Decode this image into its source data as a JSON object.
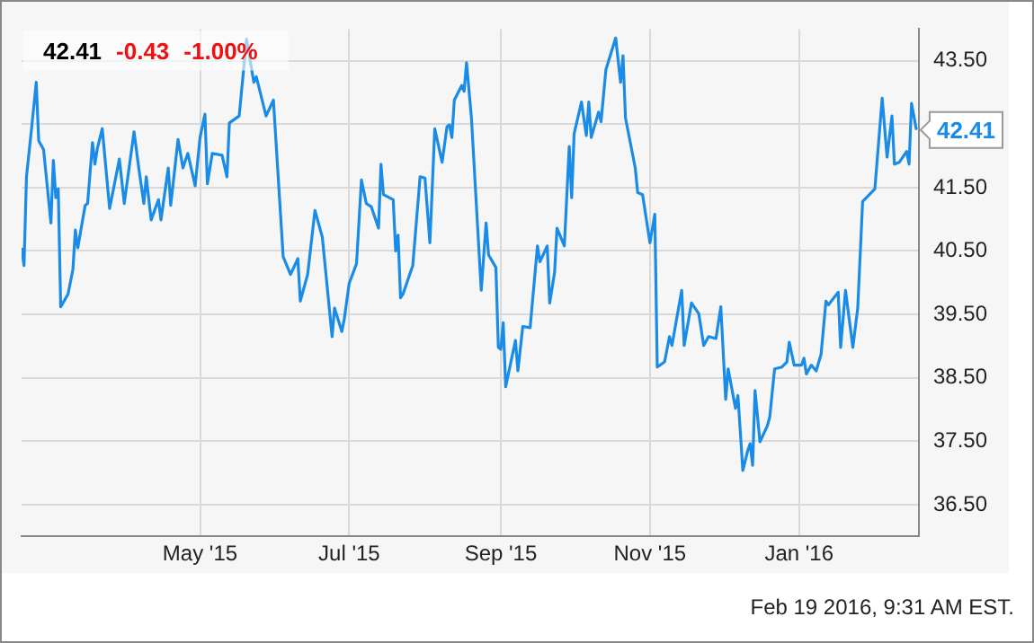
{
  "chart_data": {
    "type": "line",
    "x": [
      "2015-02-17",
      "2015-02-18",
      "2015-02-19",
      "2015-02-21",
      "2015-02-23",
      "2015-02-24",
      "2015-02-26",
      "2015-03-01",
      "2015-03-02",
      "2015-03-03",
      "2015-03-04",
      "2015-03-05",
      "2015-03-08",
      "2015-03-10",
      "2015-03-11",
      "2015-03-12",
      "2015-03-15",
      "2015-03-16",
      "2015-03-18",
      "2015-03-19",
      "2015-03-20",
      "2015-03-22",
      "2015-03-25",
      "2015-03-29",
      "2015-03-31",
      "2015-04-04",
      "2015-04-06",
      "2015-04-08",
      "2015-04-09",
      "2015-04-11",
      "2015-04-14",
      "2015-04-15",
      "2015-04-18",
      "2015-04-19",
      "2015-04-22",
      "2015-04-24",
      "2015-04-26",
      "2015-04-29",
      "2015-05-01",
      "2015-05-03",
      "2015-05-04",
      "2015-05-06",
      "2015-05-10",
      "2015-05-12",
      "2015-05-13",
      "2015-05-17",
      "2015-05-20",
      "2015-05-23",
      "2015-05-24",
      "2015-05-28",
      "2015-05-31",
      "2015-06-04",
      "2015-06-07",
      "2015-06-10",
      "2015-06-11",
      "2015-06-14",
      "2015-06-17",
      "2015-06-20",
      "2015-06-24",
      "2015-06-25",
      "2015-06-28",
      "2015-06-29",
      "2015-07-01",
      "2015-07-04",
      "2015-07-06",
      "2015-07-08",
      "2015-07-10",
      "2015-07-13",
      "2015-07-14",
      "2015-07-15",
      "2015-07-19",
      "2015-07-20",
      "2015-07-21",
      "2015-07-22",
      "2015-07-23",
      "2015-07-27",
      "2015-07-30",
      "2015-08-01",
      "2015-08-03",
      "2015-08-05",
      "2015-08-08",
      "2015-08-10",
      "2015-08-11",
      "2015-08-12",
      "2015-08-13",
      "2015-08-16",
      "2015-08-17",
      "2015-08-18",
      "2015-08-20",
      "2015-08-24",
      "2015-08-26",
      "2015-08-27",
      "2015-08-30",
      "2015-08-31",
      "2015-09-01",
      "2015-09-02",
      "2015-09-03",
      "2015-09-07",
      "2015-09-08",
      "2015-09-10",
      "2015-09-13",
      "2015-09-16",
      "2015-09-17",
      "2015-09-20",
      "2015-09-21",
      "2015-09-23",
      "2015-09-24",
      "2015-09-27",
      "2015-09-29",
      "2015-09-30",
      "2015-10-01",
      "2015-10-04",
      "2015-10-06",
      "2015-10-07",
      "2015-10-08",
      "2015-10-11",
      "2015-10-12",
      "2015-10-14",
      "2015-10-18",
      "2015-10-20",
      "2015-10-21",
      "2015-10-22",
      "2015-10-26",
      "2015-10-27",
      "2015-10-29",
      "2015-11-01",
      "2015-11-03",
      "2015-11-04",
      "2015-11-07",
      "2015-11-09",
      "2015-11-10",
      "2015-11-14",
      "2015-11-15",
      "2015-11-18",
      "2015-11-21",
      "2015-11-23",
      "2015-11-25",
      "2015-11-28",
      "2015-11-30",
      "2015-12-02",
      "2015-12-03",
      "2015-12-06",
      "2015-12-07",
      "2015-12-09",
      "2015-12-11",
      "2015-12-12",
      "2015-12-13",
      "2015-12-14",
      "2015-12-16",
      "2015-12-19",
      "2015-12-20",
      "2015-12-22",
      "2015-12-25",
      "2015-12-27",
      "2015-12-28",
      "2015-12-30",
      "2016-01-02",
      "2016-01-03",
      "2016-01-04",
      "2016-01-06",
      "2016-01-08",
      "2016-01-10",
      "2016-01-12",
      "2016-01-13",
      "2016-01-17",
      "2016-01-18",
      "2016-01-20",
      "2016-01-23",
      "2016-01-25",
      "2016-01-27",
      "2016-02-01",
      "2016-02-04",
      "2016-02-06",
      "2016-02-08",
      "2016-02-09",
      "2016-02-11",
      "2016-02-14",
      "2016-02-15",
      "2016-02-16",
      "2016-02-18"
    ],
    "series": [
      {
        "color": "#1a8be6",
        "values": [
          40.55,
          40.27,
          41.67,
          42.4,
          43.16,
          42.24,
          42.1,
          40.94,
          41.93,
          41.34,
          41.48,
          39.62,
          39.82,
          40.21,
          40.83,
          40.55,
          41.22,
          41.25,
          42.21,
          41.87,
          42.12,
          42.43,
          41.17,
          41.95,
          41.25,
          42.38,
          41.79,
          41.25,
          41.67,
          40.99,
          41.31,
          40.99,
          41.81,
          41.22,
          42.26,
          41.81,
          42.04,
          41.53,
          42.29,
          42.66,
          41.56,
          42.04,
          42.01,
          41.67,
          42.52,
          42.63,
          43.84,
          43.16,
          43.25,
          42.63,
          42.88,
          40.41,
          40.13,
          40.38,
          39.71,
          40.13,
          41.14,
          40.72,
          39.15,
          39.6,
          39.23,
          39.43,
          39.99,
          40.3,
          41.62,
          41.25,
          41.2,
          40.86,
          41.87,
          41.39,
          41.31,
          40.5,
          40.75,
          39.76,
          39.82,
          40.27,
          41.67,
          41.65,
          40.63,
          42.43,
          41.9,
          42.46,
          42.49,
          42.29,
          42.88,
          43.11,
          43.02,
          43.47,
          42.6,
          39.88,
          40.94,
          40.44,
          40.24,
          38.98,
          38.95,
          39.37,
          38.36,
          39.09,
          38.61,
          39.31,
          39.29,
          40.58,
          40.33,
          40.58,
          39.68,
          40.16,
          40.86,
          40.58,
          42.15,
          41.34,
          42.35,
          42.85,
          42.32,
          42.85,
          42.29,
          42.69,
          42.54,
          43.36,
          43.86,
          43.16,
          43.58,
          42.6,
          41.81,
          41.42,
          41.39,
          40.63,
          41.08,
          38.67,
          38.75,
          39.15,
          39.01,
          39.88,
          39.01,
          39.68,
          39.51,
          39.01,
          39.15,
          39.12,
          39.62,
          38.16,
          38.64,
          38.02,
          38.22,
          37.04,
          37.35,
          37.46,
          37.12,
          38.3,
          37.49,
          37.74,
          37.88,
          38.64,
          38.67,
          38.75,
          39.06,
          38.7,
          38.7,
          38.81,
          38.56,
          38.7,
          38.61,
          38.87,
          39.71,
          39.65,
          39.85,
          38.98,
          39.88,
          38.98,
          39.6,
          41.28,
          41.48,
          42.91,
          41.98,
          42.63,
          41.87,
          41.9,
          42.07,
          41.87,
          42.83,
          42.41
        ]
      }
    ],
    "xlim": [
      "2015-02-17",
      "2016-02-19"
    ],
    "xticks": [
      {
        "value": "2015-05-01",
        "label": "May '15"
      },
      {
        "value": "2015-07-01",
        "label": "Jul '15"
      },
      {
        "value": "2015-09-01",
        "label": "Sep '15"
      },
      {
        "value": "2015-11-01",
        "label": "Nov '15"
      },
      {
        "value": "2016-01-01",
        "label": "Jan '16"
      }
    ],
    "ylim": [
      36,
      44
    ],
    "yticks": [
      {
        "value": 36.5,
        "label": "36.50"
      },
      {
        "value": 37.5,
        "label": "37.50"
      },
      {
        "value": 38.5,
        "label": "38.50"
      },
      {
        "value": 39.5,
        "label": "39.50"
      },
      {
        "value": 40.5,
        "label": "40.50"
      },
      {
        "value": 41.5,
        "label": "41.50"
      },
      {
        "value": 42.5,
        "label": null
      },
      {
        "value": 43.5,
        "label": "43.50"
      }
    ],
    "grid": true,
    "legend": false,
    "marker": "none",
    "line_style": "solid",
    "annotations": [
      "42.41",
      "-0.43",
      "-1.00%",
      {
        "text": "42.41",
        "x": "2016-02-18",
        "y": 42.41
      },
      "Feb 19 2016, 9:31 AM EST."
    ]
  }
}
